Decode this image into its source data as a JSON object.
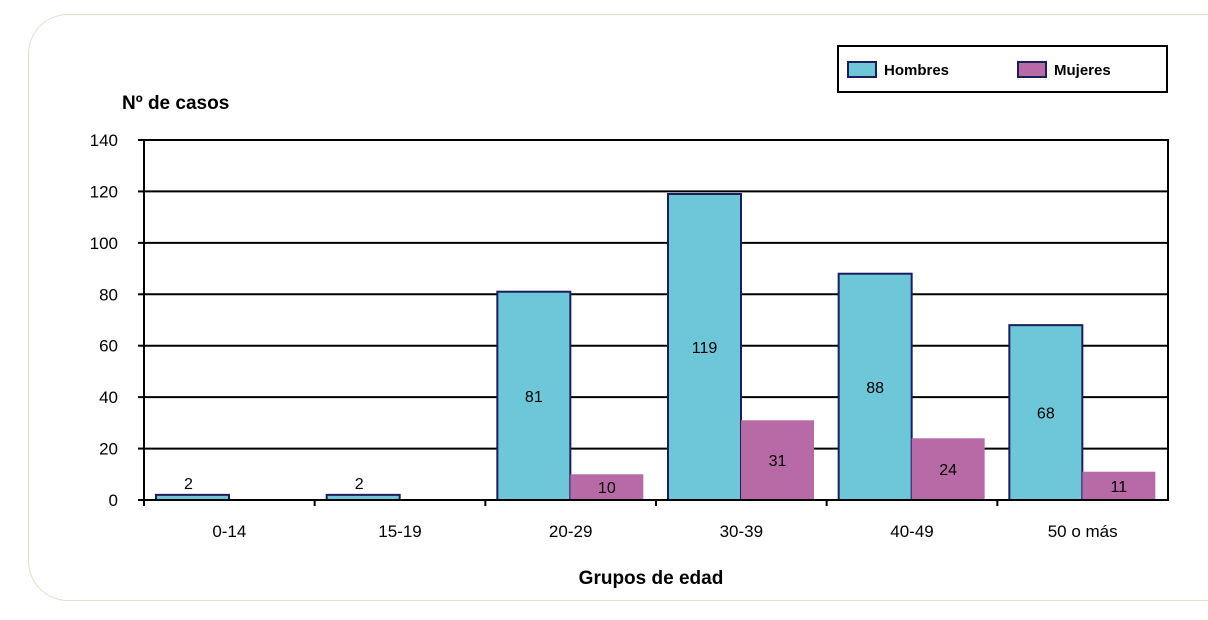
{
  "chart_data": {
    "type": "bar",
    "title": "",
    "ylabel": "Nº de casos",
    "xlabel": "Grupos de edad",
    "ylim": [
      0,
      140
    ],
    "yticks": [
      0,
      20,
      40,
      60,
      80,
      100,
      120,
      140
    ],
    "grid": true,
    "legend_position": "top-right",
    "categories": [
      "0-14",
      "15-19",
      "20-29",
      "30-39",
      "40-49",
      "50 o más"
    ],
    "series": [
      {
        "name": "Hombres",
        "color": "#6ec6d9",
        "values": [
          2,
          2,
          81,
          119,
          88,
          68
        ],
        "labels": [
          "2",
          "2",
          "81",
          "119",
          "88",
          "68"
        ]
      },
      {
        "name": "Mujeres",
        "color": "#b86aa6",
        "values": [
          0,
          0,
          10,
          31,
          24,
          11
        ],
        "labels": [
          "",
          "",
          "10",
          "31",
          "24",
          "11"
        ]
      }
    ]
  }
}
